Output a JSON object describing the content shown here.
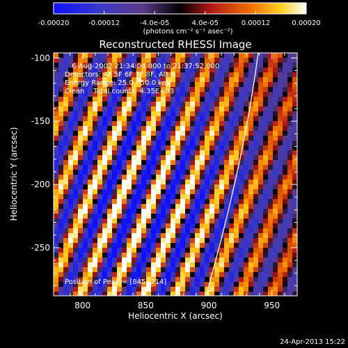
{
  "colorbar": {
    "tick_labels": [
      "-0.00020",
      "-0.00012",
      "-4.0e-05",
      "4.0e-05",
      "0.00012",
      "0.00020"
    ],
    "tick_values": [
      -0.0002,
      -0.00012,
      -4e-05,
      4e-05,
      0.00012,
      0.0002
    ],
    "range": [
      -0.0002,
      0.0002
    ],
    "units_label": "(photons cm⁻² s⁻¹ asec⁻²)"
  },
  "chart_data": {
    "type": "heatmap",
    "title": "Reconstructed RHESSI Image",
    "xlabel": "Heliocentric X (arcsec)",
    "ylabel": "Heliocentric Y (arcsec)",
    "xlim": [
      777,
      970
    ],
    "ylim": [
      -288,
      -96
    ],
    "x_ticks": [
      800,
      850,
      900,
      950
    ],
    "y_ticks": [
      -100,
      -150,
      -200,
      -250
    ],
    "peak": [
      845,
      -214
    ],
    "info_lines": [
      "6-Aug-2002 21:34:04.000 to 21:37:52.000",
      "Detectors: 4F 5F 6F 7F 8F, Att 0",
      "Energy Range: 25.0 - 50.0 keV",
      "Clean    Total counts: 4.35E+03"
    ],
    "peak_label": "Position of Peak = [845,-214]"
  },
  "footer": {
    "date": "24-Apr-2013 15:22"
  }
}
